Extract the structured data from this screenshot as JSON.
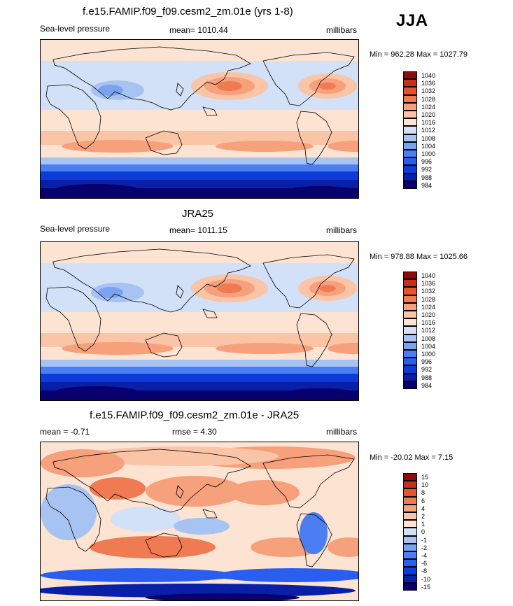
{
  "season": "JJA",
  "colors": {
    "abs_scale": [
      "#08006e",
      "#0a1fa8",
      "#0c3bd8",
      "#2a5ef0",
      "#4a7ef2",
      "#7aa2f0",
      "#a6c3f2",
      "#d2e1f7",
      "#fde3d2",
      "#fac4a6",
      "#f6a07c",
      "#f07a52",
      "#e5542d",
      "#c92e18",
      "#8b0c0a"
    ],
    "diff_scale": [
      "#08006e",
      "#0a1fa8",
      "#0c3bd8",
      "#2a5ef0",
      "#4a7ef2",
      "#7aa2f0",
      "#a6c3f2",
      "#d2e1f7",
      "#fde3d2",
      "#fac4a6",
      "#f6a07c",
      "#f07a52",
      "#e5542d",
      "#c92e18",
      "#8b0c0a"
    ]
  },
  "panels": [
    {
      "title": "f.e15.FAMIP.f09_f09.cesm2_zm.01e (yrs 1-8)",
      "left_label": "Sea-level pressure",
      "center_label": "mean= 1010.44",
      "right_label": "millibars",
      "minmax": "Min = 962.28 Max = 1027.79",
      "colorbar_labels": [
        "1040",
        "1036",
        "1032",
        "1028",
        "1024",
        "1020",
        "1016",
        "1012",
        "1008",
        "1004",
        "1000",
        "996",
        "992",
        "988",
        "984"
      ]
    },
    {
      "title": "JRA25",
      "left_label": "Sea-level pressure",
      "center_label": "mean= 1011.15",
      "right_label": "millibars",
      "minmax": "Min = 978.88 Max = 1025.66",
      "colorbar_labels": [
        "1040",
        "1036",
        "1032",
        "1028",
        "1024",
        "1020",
        "1016",
        "1012",
        "1008",
        "1004",
        "1000",
        "996",
        "992",
        "988",
        "984"
      ]
    },
    {
      "title": "f.e15.FAMIP.f09_f09.cesm2_zm.01e - JRA25",
      "left_label": "mean =  -0.71",
      "center_label": "rmse =    4.30",
      "right_label": "millibars",
      "minmax": "Min = -20.02 Max =   7.15",
      "colorbar_labels": [
        "15",
        "10",
        "8",
        "6",
        "4",
        "2",
        "1",
        "0",
        "-1",
        "-2",
        "-4",
        "-6",
        "-8",
        "-10",
        "-15"
      ]
    }
  ],
  "chart_data": [
    {
      "type": "heatmap",
      "title": "f.e15.FAMIP.f09_f09.cesm2_zm.01e (yrs 1-8)",
      "variable": "Sea-level pressure",
      "units": "millibars",
      "mean": 1010.44,
      "min": 962.28,
      "max": 1027.79,
      "levels": [
        984,
        988,
        992,
        996,
        1000,
        1004,
        1008,
        1012,
        1016,
        1020,
        1024,
        1028,
        1032,
        1036,
        1040
      ]
    },
    {
      "type": "heatmap",
      "title": "JRA25",
      "variable": "Sea-level pressure",
      "units": "millibars",
      "mean": 1011.15,
      "min": 978.88,
      "max": 1025.66,
      "levels": [
        984,
        988,
        992,
        996,
        1000,
        1004,
        1008,
        1012,
        1016,
        1020,
        1024,
        1028,
        1032,
        1036,
        1040
      ]
    },
    {
      "type": "heatmap",
      "title": "f.e15.FAMIP.f09_f09.cesm2_zm.01e - JRA25",
      "units": "millibars",
      "mean": -0.71,
      "rmse": 4.3,
      "min": -20.02,
      "max": 7.15,
      "levels": [
        -15,
        -10,
        -8,
        -6,
        -4,
        -2,
        -1,
        0,
        1,
        2,
        4,
        6,
        8,
        10,
        15
      ]
    }
  ]
}
